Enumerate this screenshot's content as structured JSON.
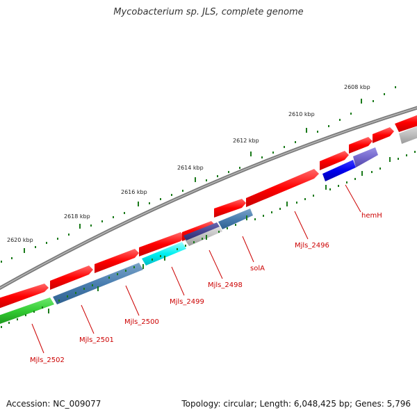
{
  "title": "Mycobacterium sp. JLS, complete genome",
  "footer": {
    "accession": "Accession: NC_009077",
    "stats": "Topology: circular; Length: 6,048,425 bp; Genes: 5,796"
  },
  "kbp_labels": [
    "2608 kbp",
    "2610 kbp",
    "2612 kbp",
    "2614 kbp",
    "2616 kbp",
    "2618 kbp",
    "2620 kbp"
  ],
  "gene_labels": [
    "hemH",
    "Mjls_2496",
    "solA",
    "Mjls_2498",
    "Mjls_2499",
    "Mjls_2500",
    "Mjls_2501",
    "Mjls_2502"
  ],
  "colors": {
    "backbone": "#808080",
    "forward_gene": "#ff0000",
    "label": "#cc0000",
    "tick": "#1a7a1a"
  }
}
